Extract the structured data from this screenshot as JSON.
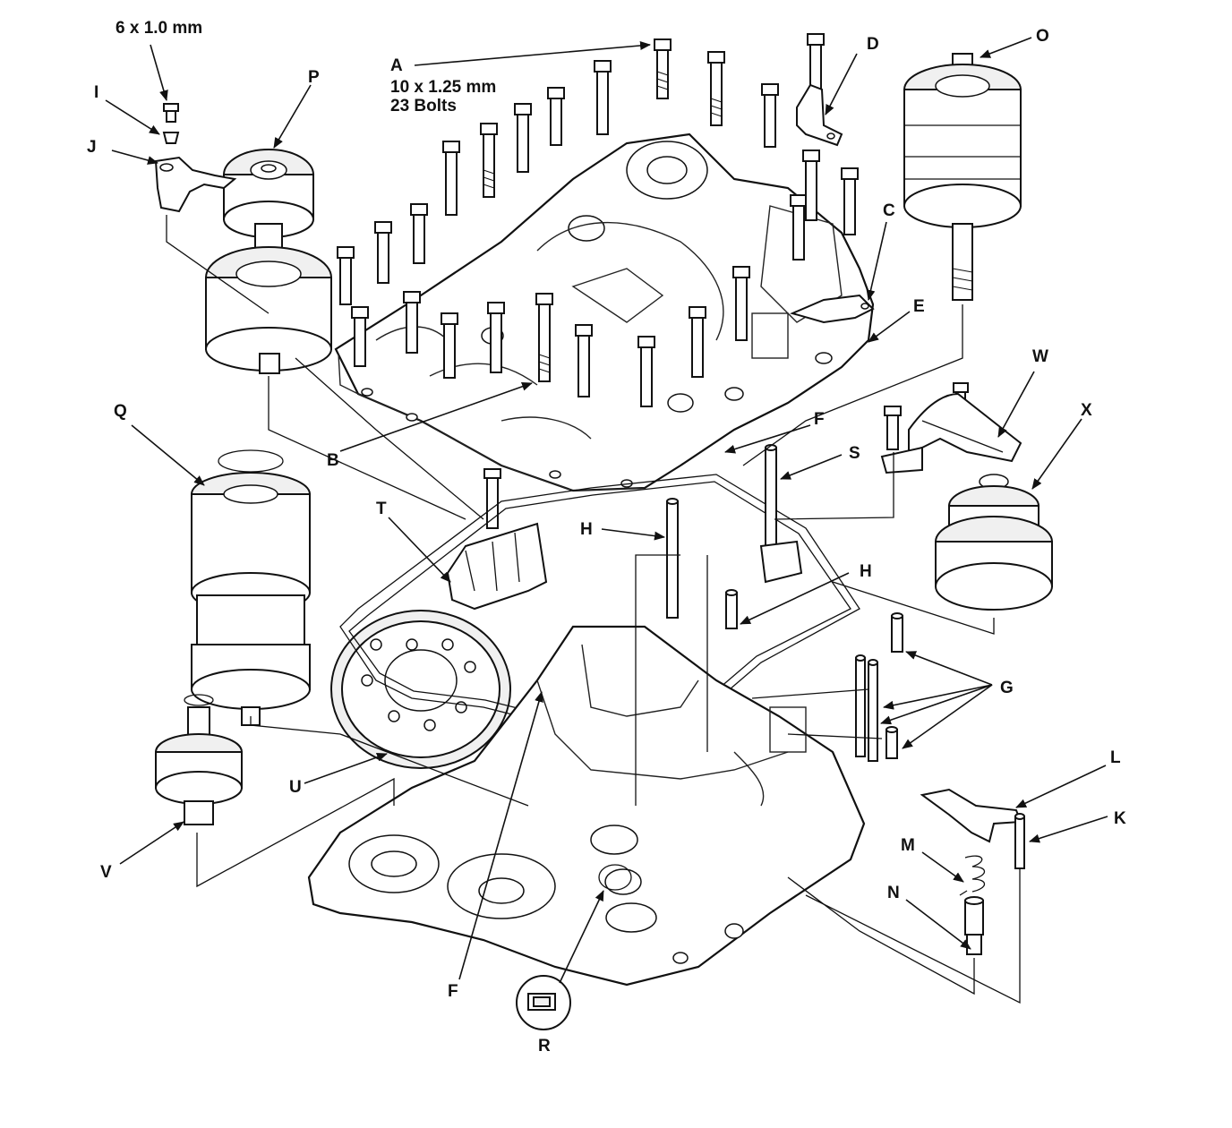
{
  "labels": {
    "A": "A",
    "a_spec_line1": "10 x 1.25 mm",
    "a_spec_line2": "23 Bolts",
    "B": "B",
    "C": "C",
    "D": "D",
    "E": "E",
    "F_top": "F",
    "F_bottom": "F",
    "G": "G",
    "H_top": "H",
    "H_mid": "H",
    "I": "I",
    "J": "J",
    "K": "K",
    "L": "L",
    "M": "M",
    "N": "N",
    "O": "O",
    "P": "P",
    "Q": "Q",
    "R": "R",
    "S": "S",
    "T": "T",
    "U": "U",
    "V": "V",
    "W": "W",
    "X": "X",
    "i_spec": "6 x 1.0 mm"
  },
  "colors": {
    "ink": "#111111",
    "paper": "#ffffff"
  }
}
